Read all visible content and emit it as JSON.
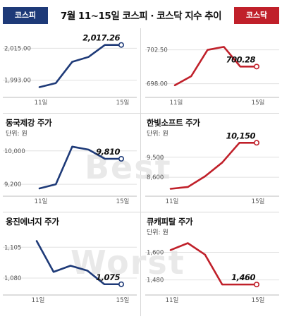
{
  "headline": "7월 11~15일 코스피 · 코스닥 지수 추이",
  "tags": {
    "left": "코스피",
    "right": "코스닥"
  },
  "watermark": {
    "best": "Best",
    "worst": "Worst"
  },
  "colors": {
    "kospi": "#1e3a78",
    "kosdaq": "#c0202a"
  },
  "chart_data": [
    {
      "id": "kospi",
      "type": "line",
      "color": "#1e3a78",
      "title": "",
      "unit": "",
      "x": [
        "11일",
        "",
        "",
        "",
        "",
        "15일"
      ],
      "y_ticks": [
        "2,015.00",
        "1,993.00"
      ],
      "y_tick_values": [
        2015,
        1993
      ],
      "ylim": [
        1986,
        2021
      ],
      "values": [
        1988.2,
        1991.0,
        2005.6,
        2009.0,
        2017.26,
        2017.26
      ],
      "last_label": "2,017.26"
    },
    {
      "id": "kosdaq",
      "type": "line",
      "color": "#c0202a",
      "title": "",
      "unit": "",
      "x": [
        "11일",
        "",
        "",
        "",
        "",
        "15일"
      ],
      "y_ticks": [
        "702.50",
        "698.00"
      ],
      "y_tick_values": [
        702.5,
        698.0
      ],
      "ylim": [
        697.5,
        703.5
      ],
      "values": [
        697.8,
        699.0,
        702.5,
        702.9,
        700.28,
        700.28
      ],
      "last_label": "700.28"
    },
    {
      "id": "dongkuk",
      "type": "line",
      "color": "#1e3a78",
      "title": "동국제강 주가",
      "unit": "단위: 원",
      "x": [
        "11일",
        "",
        "",
        "",
        "",
        "15일"
      ],
      "y_ticks": [
        "10,000",
        "9,200"
      ],
      "y_tick_values": [
        10000,
        9200
      ],
      "ylim": [
        9050,
        10300
      ],
      "values": [
        9100,
        9200,
        10100,
        10030,
        9810,
        9810
      ],
      "last_label": "9,810"
    },
    {
      "id": "hancom",
      "type": "line",
      "color": "#c0202a",
      "title": "한빛소프트 주가",
      "unit": "단위: 원",
      "x": [
        "11일",
        "",
        "",
        "",
        "",
        "15일"
      ],
      "y_ticks": [
        "9,500",
        "8,600"
      ],
      "y_tick_values": [
        9500,
        8600
      ],
      "ylim": [
        8000,
        10350
      ],
      "values": [
        8080,
        8160,
        8640,
        9260,
        10150,
        10150
      ],
      "last_label": "10,150"
    },
    {
      "id": "woongjin",
      "type": "line",
      "color": "#1e3a78",
      "title": "웅진에너지 주가",
      "unit": "",
      "x": [
        "11일",
        "",
        "",
        "",
        "",
        "15일"
      ],
      "y_ticks": [
        "1,105",
        "1,080"
      ],
      "y_tick_values": [
        1105,
        1080
      ],
      "ylim": [
        1072,
        1112
      ],
      "values": [
        1110,
        1085,
        1090,
        1086,
        1075,
        1075
      ],
      "last_label": "1,075"
    },
    {
      "id": "cuecapital",
      "type": "line",
      "color": "#c0202a",
      "title": "큐캐피탈 주가",
      "unit": "단위: 원",
      "x": [
        "11일",
        "",
        "",
        "",
        "",
        "15일"
      ],
      "y_ticks": [
        "1,600",
        "1,480"
      ],
      "y_tick_values": [
        1600,
        1480
      ],
      "ylim": [
        1445,
        1660
      ],
      "values": [
        1610,
        1640,
        1590,
        1460,
        1460,
        1460
      ],
      "last_label": "1,460"
    }
  ]
}
